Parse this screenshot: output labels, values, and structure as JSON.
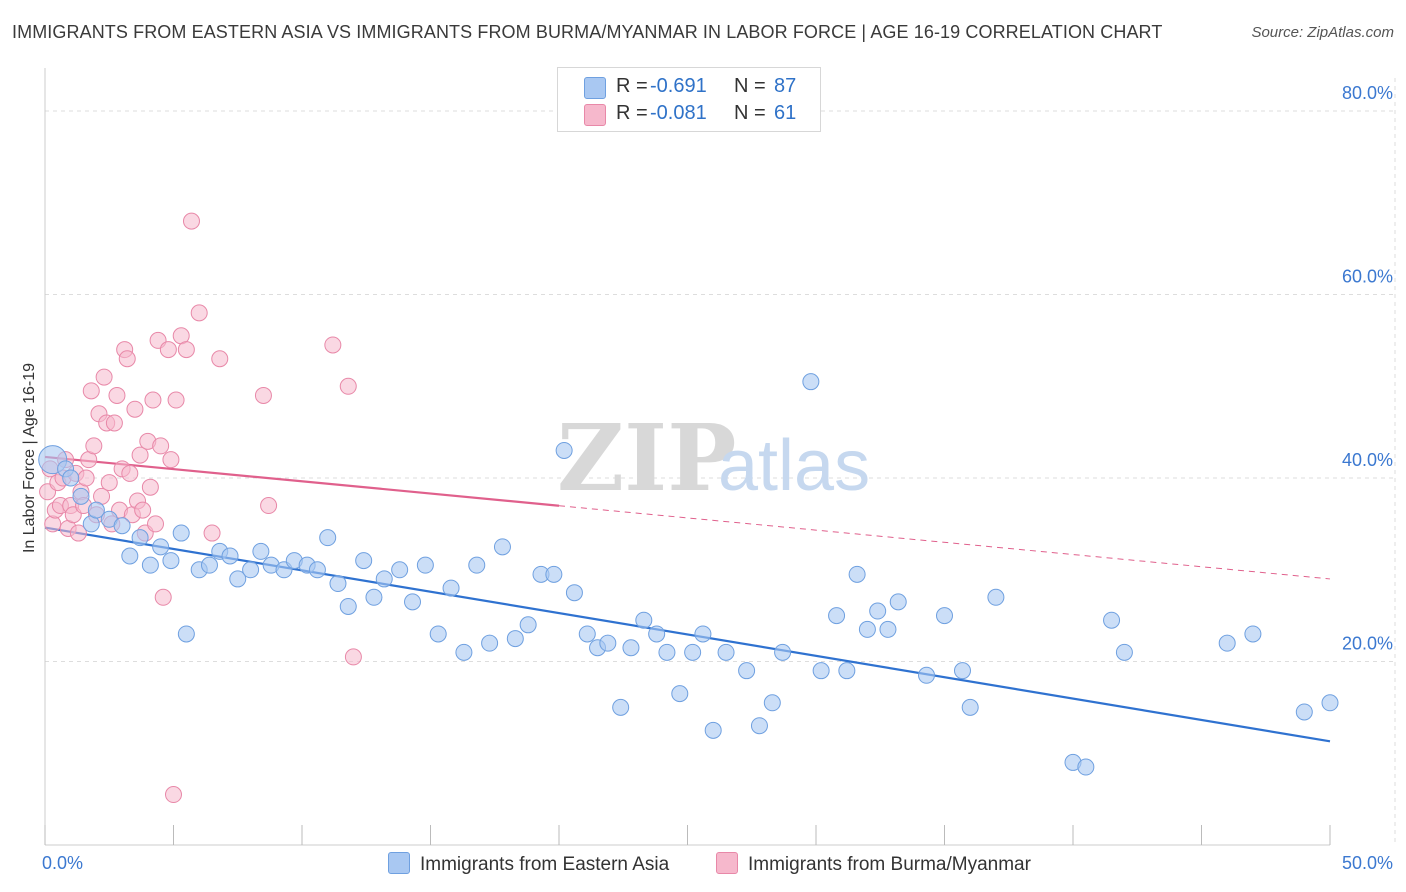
{
  "header": {
    "title": "IMMIGRANTS FROM EASTERN ASIA VS IMMIGRANTS FROM BURMA/MYANMAR IN LABOR FORCE | AGE 16-19 CORRELATION CHART",
    "source": "Source: ZipAtlas.com"
  },
  "legend": {
    "series1": {
      "r_label": "R =",
      "r_value": "-0.691",
      "n_label": "N =",
      "n_value": "87"
    },
    "series2": {
      "r_label": "R =",
      "r_value": "-0.081",
      "n_label": "N =",
      "n_value": "61"
    }
  },
  "watermark": {
    "zip": "ZIP",
    "atlas": "atlas"
  },
  "colors": {
    "blue_fill": "#a9c8f2",
    "blue_stroke": "#6fa0e0",
    "blue_line": "#2f72d0",
    "pink_fill": "#f6b8cc",
    "pink_stroke": "#e888a8",
    "pink_line": "#e0608c",
    "tick_text": "#3b78d0",
    "grid": "#dddddd"
  },
  "chart_data": {
    "type": "scatter",
    "title": "IMMIGRANTS FROM EASTERN ASIA VS IMMIGRANTS FROM BURMA/MYANMAR IN LABOR FORCE | AGE 16-19 CORRELATION CHART",
    "xlabel": "",
    "ylabel": "In Labor Force | Age 16-19",
    "xlim": [
      0,
      50
    ],
    "ylim": [
      0,
      80
    ],
    "x_tick_labels": [
      "0.0%",
      "50.0%"
    ],
    "y_ticks": [
      20,
      40,
      60,
      80
    ],
    "y_tick_labels": [
      "20.0%",
      "40.0%",
      "60.0%",
      "80.0%"
    ],
    "grid": true,
    "legend_position": "top-center",
    "series": [
      {
        "name": "Immigrants from Eastern Asia",
        "color": "#a9c8f2",
        "r": -0.691,
        "n": 87,
        "trend": {
          "x": [
            0,
            50
          ],
          "y": [
            34.6,
            11.3
          ]
        },
        "points": [
          [
            0.3,
            42
          ],
          [
            0.8,
            41
          ],
          [
            1.0,
            40
          ],
          [
            1.4,
            38
          ],
          [
            1.8,
            35
          ],
          [
            2.0,
            36.5
          ],
          [
            2.5,
            35.5
          ],
          [
            3.0,
            34.8
          ],
          [
            3.3,
            31.5
          ],
          [
            3.7,
            33.5
          ],
          [
            4.1,
            30.5
          ],
          [
            4.5,
            32.5
          ],
          [
            4.9,
            31
          ],
          [
            5.3,
            34
          ],
          [
            5.5,
            23
          ],
          [
            6.0,
            30
          ],
          [
            6.4,
            30.5
          ],
          [
            6.8,
            32
          ],
          [
            7.2,
            31.5
          ],
          [
            7.5,
            29
          ],
          [
            8.0,
            30
          ],
          [
            8.4,
            32
          ],
          [
            8.8,
            30.5
          ],
          [
            9.3,
            30
          ],
          [
            9.7,
            31
          ],
          [
            10.2,
            30.5
          ],
          [
            10.6,
            30
          ],
          [
            11.0,
            33.5
          ],
          [
            11.4,
            28.5
          ],
          [
            11.8,
            26
          ],
          [
            12.4,
            31
          ],
          [
            12.8,
            27
          ],
          [
            13.2,
            29
          ],
          [
            13.8,
            30
          ],
          [
            14.3,
            26.5
          ],
          [
            14.8,
            30.5
          ],
          [
            15.3,
            23
          ],
          [
            15.8,
            28
          ],
          [
            16.3,
            21
          ],
          [
            16.8,
            30.5
          ],
          [
            17.3,
            22
          ],
          [
            17.8,
            32.5
          ],
          [
            18.3,
            22.5
          ],
          [
            18.8,
            24
          ],
          [
            19.3,
            29.5
          ],
          [
            19.8,
            29.5
          ],
          [
            20.2,
            43
          ],
          [
            20.6,
            27.5
          ],
          [
            21.1,
            23
          ],
          [
            21.5,
            21.5
          ],
          [
            21.9,
            22
          ],
          [
            22.4,
            15
          ],
          [
            22.8,
            21.5
          ],
          [
            23.3,
            24.5
          ],
          [
            23.8,
            23
          ],
          [
            24.2,
            21
          ],
          [
            24.7,
            16.5
          ],
          [
            25.2,
            21
          ],
          [
            25.6,
            23
          ],
          [
            26.0,
            12.5
          ],
          [
            26.5,
            21
          ],
          [
            27.3,
            19
          ],
          [
            27.8,
            13
          ],
          [
            28.3,
            15.5
          ],
          [
            28.7,
            21
          ],
          [
            29.8,
            50.5
          ],
          [
            30.2,
            19
          ],
          [
            30.8,
            25
          ],
          [
            31.2,
            19
          ],
          [
            31.6,
            29.5
          ],
          [
            32.0,
            23.5
          ],
          [
            32.4,
            25.5
          ],
          [
            32.8,
            23.5
          ],
          [
            33.2,
            26.5
          ],
          [
            34.3,
            18.5
          ],
          [
            35.0,
            25
          ],
          [
            35.7,
            19
          ],
          [
            36.0,
            15
          ],
          [
            37.0,
            27
          ],
          [
            40.0,
            9
          ],
          [
            40.5,
            8.5
          ],
          [
            41.5,
            24.5
          ],
          [
            42.0,
            21
          ],
          [
            46.0,
            22
          ],
          [
            47.0,
            23
          ],
          [
            49.0,
            14.5
          ],
          [
            50.0,
            15.5
          ]
        ]
      },
      {
        "name": "Immigrants from Burma/Myanmar",
        "color": "#f6b8cc",
        "r": -0.081,
        "n": 61,
        "trend": {
          "x": [
            0,
            50
          ],
          "y": [
            42.3,
            29.0
          ],
          "solid_until_x": 20
        },
        "points": [
          [
            0.1,
            38.5
          ],
          [
            0.2,
            41
          ],
          [
            0.3,
            35
          ],
          [
            0.4,
            36.5
          ],
          [
            0.5,
            39.5
          ],
          [
            0.6,
            37
          ],
          [
            0.7,
            40
          ],
          [
            0.8,
            42
          ],
          [
            0.9,
            34.5
          ],
          [
            1.0,
            37
          ],
          [
            1.1,
            36
          ],
          [
            1.2,
            40.5
          ],
          [
            1.3,
            34
          ],
          [
            1.4,
            38.5
          ],
          [
            1.5,
            37
          ],
          [
            1.6,
            40
          ],
          [
            1.7,
            42
          ],
          [
            1.8,
            49.5
          ],
          [
            1.9,
            43.5
          ],
          [
            2.0,
            36
          ],
          [
            2.1,
            47
          ],
          [
            2.2,
            38
          ],
          [
            2.3,
            51
          ],
          [
            2.4,
            46
          ],
          [
            2.5,
            39.5
          ],
          [
            2.6,
            35
          ],
          [
            2.7,
            46
          ],
          [
            2.8,
            49
          ],
          [
            2.9,
            36.5
          ],
          [
            3.0,
            41
          ],
          [
            3.1,
            54
          ],
          [
            3.2,
            53
          ],
          [
            3.3,
            40.5
          ],
          [
            3.4,
            36
          ],
          [
            3.5,
            47.5
          ],
          [
            3.6,
            37.5
          ],
          [
            3.7,
            42.5
          ],
          [
            3.8,
            36.5
          ],
          [
            3.9,
            34
          ],
          [
            4.0,
            44
          ],
          [
            4.1,
            39
          ],
          [
            4.2,
            48.5
          ],
          [
            4.3,
            35
          ],
          [
            4.4,
            55
          ],
          [
            4.5,
            43.5
          ],
          [
            4.6,
            27
          ],
          [
            4.8,
            54
          ],
          [
            4.9,
            42
          ],
          [
            5.0,
            5.5
          ],
          [
            5.1,
            48.5
          ],
          [
            5.3,
            55.5
          ],
          [
            5.5,
            54
          ],
          [
            5.7,
            68
          ],
          [
            6.0,
            58
          ],
          [
            6.5,
            34
          ],
          [
            6.8,
            53
          ],
          [
            8.5,
            49
          ],
          [
            8.7,
            37
          ],
          [
            11.2,
            54.5
          ],
          [
            11.8,
            50
          ],
          [
            12.0,
            20.5
          ]
        ]
      }
    ]
  },
  "bottom_legend": {
    "item1": "Immigrants from Eastern Asia",
    "item2": "Immigrants from Burma/Myanmar"
  }
}
